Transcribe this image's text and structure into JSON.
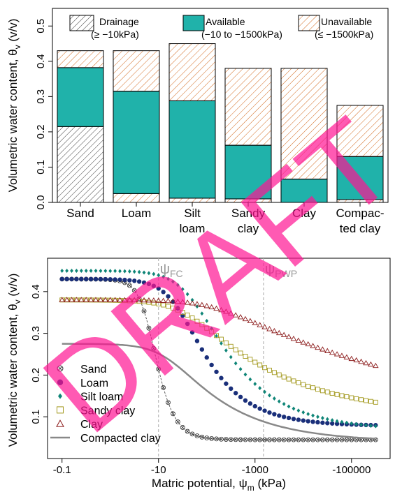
{
  "chart_data": [
    {
      "type": "bar",
      "stacked": true,
      "ylabel_parts": [
        "Volumetric water content, θ",
        "v",
        " (v/v)"
      ],
      "ylim": [
        0,
        0.55
      ],
      "yticks": [
        "0.0",
        "0.1",
        "0.2",
        "0.3",
        "0.4",
        "0.5"
      ],
      "categories": [
        [
          "Sand"
        ],
        [
          "Loam"
        ],
        [
          "Silt",
          "loam"
        ],
        [
          "Sandy",
          "clay"
        ],
        [
          "Clay"
        ],
        [
          "Compac-",
          "ted clay"
        ]
      ],
      "series": [
        {
          "name": "Unavailable",
          "sublabel": "(≤ −1500kPa)",
          "values": [
            0.0,
            0.025,
            0.012,
            0.01,
            0.0,
            0.008
          ]
        },
        {
          "name": "Available",
          "sublabel": "(−10 to −1500kPa)",
          "values": [
            0.167,
            0.29,
            0.276,
            0.152,
            0.066,
            0.122
          ]
        },
        {
          "name": "Drainage",
          "sublabel": "(≥ −10kPa)",
          "values": [
            0.215,
            0.0,
            0.0,
            0.0,
            0.0,
            0.0
          ]
        },
        {
          "name": "Unavailable_top",
          "values": [
            0.048,
            0.115,
            0.162,
            0.218,
            0.314,
            0.145
          ]
        }
      ],
      "stack_top": [
        0.43,
        0.43,
        0.45,
        0.38,
        0.38,
        0.275
      ]
    },
    {
      "type": "line",
      "ylabel_parts": [
        "Volumetric water content, θ",
        "v",
        " (v/v)"
      ],
      "xlabel_parts": [
        "Matric potential, ψ",
        "m",
        " (kPa)"
      ],
      "xscale": "log",
      "xlim_log10": [
        -1.3,
        5.8
      ],
      "ylim": [
        0.0,
        0.48
      ],
      "xticks": [
        {
          "value": -1,
          "label": "-0.1"
        },
        {
          "value": 1,
          "label": "-10"
        },
        {
          "value": 3,
          "label": "-1000"
        },
        {
          "value": 5,
          "label": "-100000"
        }
      ],
      "yticks": [
        "0.1",
        "0.2",
        "0.3",
        "0.4"
      ],
      "ref_lines": [
        {
          "name_main": "ψ",
          "name_sub": "FC",
          "log10": 1.0
        },
        {
          "name_main": "ψ",
          "name_sub": "PWP",
          "log10": 3.176
        }
      ],
      "series": [
        {
          "name": "Sand",
          "marker": "circle-x",
          "color": "#333333",
          "theta_s": 0.43,
          "theta_r": 0.045,
          "alpha": 0.145,
          "n": 2.68
        },
        {
          "name": "Loam",
          "marker": "dot",
          "color": "#1a2f7a",
          "theta_s": 0.43,
          "theta_r": 0.078,
          "alpha": 0.036,
          "n": 1.56
        },
        {
          "name": "Silt loam",
          "marker": "diamond",
          "color": "#0e8577",
          "theta_s": 0.45,
          "theta_r": 0.067,
          "alpha": 0.02,
          "n": 1.41
        },
        {
          "name": "Sandy clay",
          "marker": "square",
          "color": "#a49a20",
          "theta_s": 0.38,
          "theta_r": 0.1,
          "alpha": 0.027,
          "n": 1.23
        },
        {
          "name": "Clay",
          "marker": "triangle",
          "color": "#8b1a1a",
          "theta_s": 0.38,
          "theta_r": 0.068,
          "alpha": 0.008,
          "n": 1.09
        },
        {
          "name": "Compacted clay",
          "marker": "line",
          "color": "#888888",
          "theta_s": 0.275,
          "theta_r": 0.04,
          "alpha": 0.06,
          "n": 1.35
        }
      ]
    }
  ],
  "legend_top": {
    "drainage": "Drainage",
    "drainage_sub": "(≥ −10kPa)",
    "available": "Available",
    "available_sub": "(−10 to −1500kPa)",
    "unavailable": "Unavailable",
    "unavailable_sub": "(≤ −1500kPa)"
  },
  "colors": {
    "available": "#20b2aa",
    "unavailable_hatch": "#d2691e",
    "drainage_hatch": "#333333",
    "watermark": "#ff1493"
  },
  "watermark": "DRAFT"
}
